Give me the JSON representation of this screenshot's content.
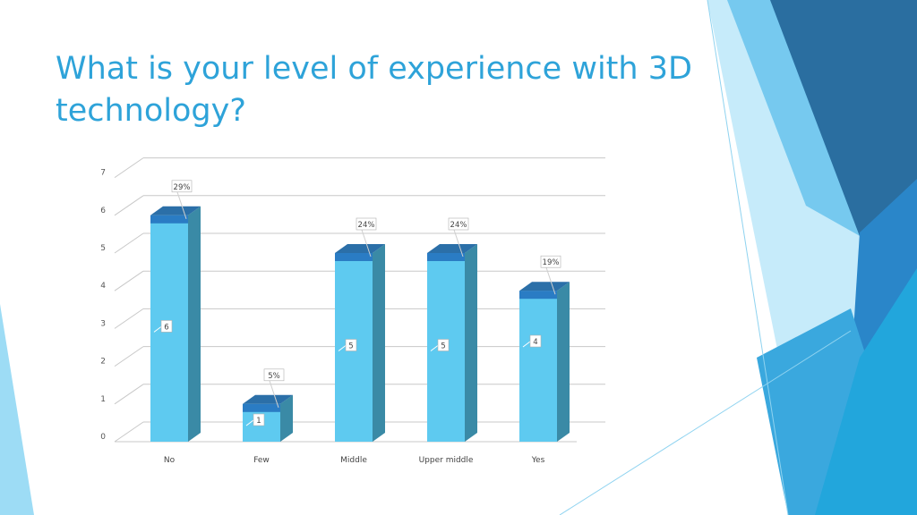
{
  "slide": {
    "title": "What is your level of experience with 3D technology?"
  },
  "colors": {
    "title": "#2ea3d9",
    "bar_front": "#5ecaf0",
    "bar_side": "#3a8aa6",
    "bar_top": "#2b6fa8",
    "bar_band": "#2a7cc4",
    "grid": "#c8c8c8",
    "accent_dark": "#2a6ea0",
    "accent_mid": "#40a8e0",
    "accent_light": "#8ad4f2"
  },
  "chart_data": {
    "type": "bar",
    "title": "",
    "xlabel": "",
    "ylabel": "",
    "ylim": [
      0,
      7
    ],
    "yticks": [
      "0",
      "1",
      "2",
      "3",
      "4",
      "5",
      "6",
      "7"
    ],
    "categories": [
      "No",
      "Few",
      "Middle",
      "Upper middle",
      "Yes"
    ],
    "values": [
      6,
      1,
      5,
      5,
      4
    ],
    "value_labels": [
      "6",
      "1",
      "5",
      "5",
      "4"
    ],
    "percent_labels": [
      "29%",
      "5%",
      "24%",
      "24%",
      "19%"
    ],
    "grid": true,
    "legend": "none",
    "style": "3d-column"
  }
}
